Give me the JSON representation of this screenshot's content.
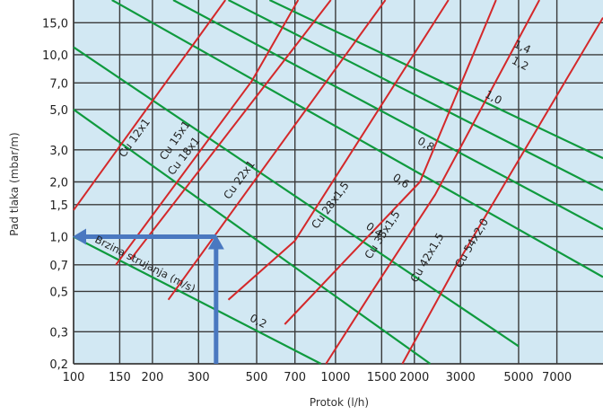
{
  "chart_data": {
    "type": "line",
    "title": "",
    "xlabel": "Protok (l/h)",
    "ylabel": "Pad tlaka (mbar/m)",
    "xscale": "log",
    "yscale": "log",
    "xlim": [
      100,
      10500
    ],
    "ylim": [
      0.2,
      20
    ],
    "grid": true,
    "x_ticks": [
      {
        "value": 100,
        "label": "100"
      },
      {
        "value": 150,
        "label": "150"
      },
      {
        "value": 200,
        "label": "200"
      },
      {
        "value": 300,
        "label": "300"
      },
      {
        "value": 500,
        "label": "500"
      },
      {
        "value": 700,
        "label": "700"
      },
      {
        "value": 1000,
        "label": "1000"
      },
      {
        "value": 1500,
        "label": "1500"
      },
      {
        "value": 2000,
        "label": "2000"
      },
      {
        "value": 3000,
        "label": "3000"
      },
      {
        "value": 5000,
        "label": "5000"
      },
      {
        "value": 7000,
        "label": "7000"
      }
    ],
    "y_ticks": [
      {
        "value": 0.2,
        "label": "0,2"
      },
      {
        "value": 0.3,
        "label": "0,3"
      },
      {
        "value": 0.5,
        "label": "0,5"
      },
      {
        "value": 0.7,
        "label": "0,7"
      },
      {
        "value": 1.0,
        "label": "1,0"
      },
      {
        "value": 1.5,
        "label": "1,5"
      },
      {
        "value": 2.0,
        "label": "2,0"
      },
      {
        "value": 3.0,
        "label": "3,0"
      },
      {
        "value": 5.0,
        "label": "5,0"
      },
      {
        "value": 7.0,
        "label": "7,0"
      },
      {
        "value": 10.0,
        "label": "10,0"
      },
      {
        "value": 15.0,
        "label": "15,0"
      }
    ],
    "pipe_series": [
      {
        "name": "Cu 12x1",
        "points": [
          [
            100,
            1.4
          ],
          [
            380,
            20
          ]
        ]
      },
      {
        "name": "Cu 15x1",
        "points": [
          [
            145,
            0.7
          ],
          [
            480,
            7.2
          ],
          [
            720,
            20
          ]
        ]
      },
      {
        "name": "Cu 18x1",
        "points": [
          [
            165,
            0.75
          ],
          [
            960,
            20
          ]
        ]
      },
      {
        "name": "Cu 22x1",
        "points": [
          [
            230,
            0.45
          ],
          [
            1550,
            20
          ]
        ]
      },
      {
        "name": "Cu 28x1,5",
        "points": [
          [
            390,
            0.45
          ],
          [
            700,
            0.95
          ],
          [
            2700,
            20
          ]
        ]
      },
      {
        "name": "Cu 35x1,5",
        "points": [
          [
            640,
            0.33
          ],
          [
            1050,
            0.7
          ],
          [
            2100,
            2.0
          ],
          [
            4100,
            20
          ]
        ]
      },
      {
        "name": "Cu 42x1,5",
        "points": [
          [
            920,
            0.2
          ],
          [
            1380,
            0.5
          ],
          [
            2400,
            1.7
          ],
          [
            6000,
            20
          ]
        ]
      },
      {
        "name": "Cu 54x2,0",
        "points": [
          [
            1800,
            0.2
          ],
          [
            2900,
            0.7
          ],
          [
            10500,
            16
          ]
        ]
      }
    ],
    "velocity_series": [
      {
        "name": "0,2",
        "points": [
          [
            100,
            1.0
          ],
          [
            880,
            0.2
          ]
        ]
      },
      {
        "name": "0,4",
        "points": [
          [
            100,
            5.0
          ],
          [
            2300,
            0.2
          ]
        ]
      },
      {
        "name": "0,6",
        "points": [
          [
            100,
            11.0
          ],
          [
            5000,
            0.25
          ]
        ]
      },
      {
        "name": "0,8",
        "points": [
          [
            140,
            20
          ],
          [
            10500,
            0.6
          ]
        ]
      },
      {
        "name": "1,0",
        "points": [
          [
            240,
            20
          ],
          [
            10500,
            1.1
          ]
        ]
      },
      {
        "name": "1,2",
        "points": [
          [
            390,
            20
          ],
          [
            10500,
            1.8
          ]
        ]
      },
      {
        "name": "1,4",
        "points": [
          [
            560,
            20
          ],
          [
            10500,
            2.7
          ]
        ]
      }
    ],
    "velocity_axis_label": "Brzina strujanja (m/s)",
    "annotation": {
      "type": "example-path",
      "color": "#4a78c0",
      "from_flow": 350,
      "to_pressure": 1.0
    },
    "colors": {
      "pipe": "#d4282a",
      "velocity": "#0f9a3e",
      "grid": "#3a3a3a",
      "plot_background": "#d2e8f3",
      "annotation": "#4a78c0"
    }
  }
}
